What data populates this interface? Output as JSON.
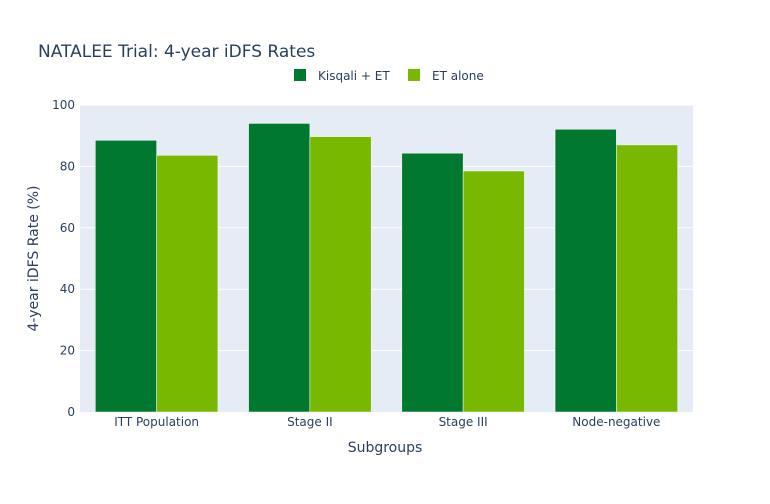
{
  "chart_data": {
    "type": "bar",
    "title": "NATALEE Trial: 4-year iDFS Rates",
    "xlabel": "Subgroups",
    "ylabel": "4-year iDFS Rate (%)",
    "categories": [
      "ITT Population",
      "Stage II",
      "Stage III",
      "Node-negative"
    ],
    "series": [
      {
        "name": "Kisqali + ET",
        "values": [
          88.5,
          94.0,
          84.3,
          92.1
        ],
        "color": "#00782f"
      },
      {
        "name": "ET alone",
        "values": [
          83.6,
          89.7,
          78.5,
          87.0
        ],
        "color": "#78b800"
      }
    ],
    "ylim": [
      0,
      100
    ],
    "yticks": [
      0,
      20,
      40,
      60,
      80,
      100
    ],
    "grid": true,
    "legend_position": "top-center",
    "plot_background": "#e5ecf6"
  }
}
